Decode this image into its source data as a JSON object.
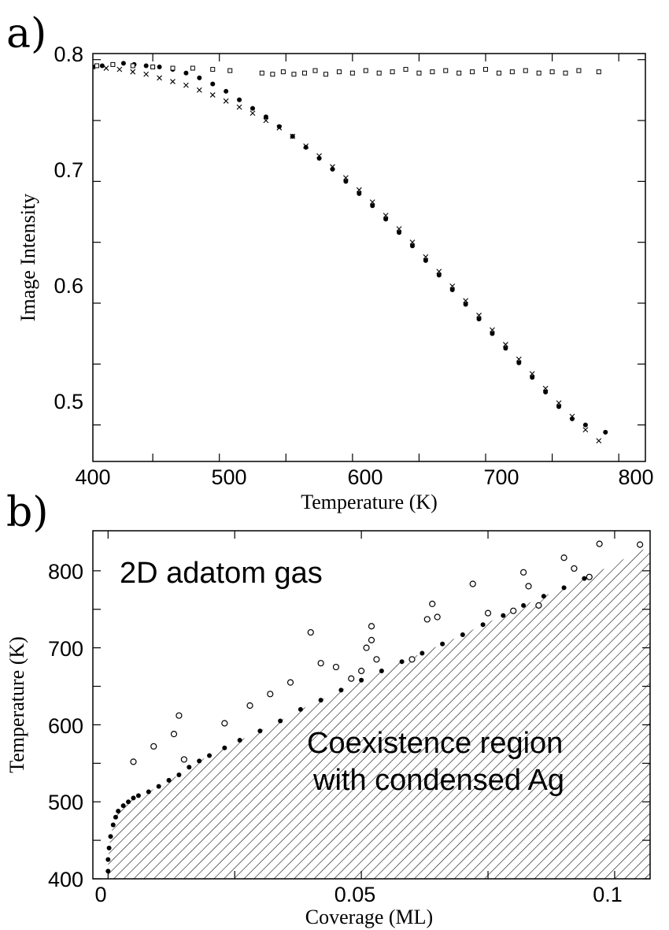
{
  "chart_data": [
    {
      "panel": "a)",
      "type": "scatter",
      "xlabel": "Temperature (K)",
      "ylabel": "Image Intensity",
      "xlim": [
        405,
        820
      ],
      "ylim": [
        0.47,
        0.805
      ],
      "xticks": [
        "400",
        "500",
        "600",
        "700",
        "800"
      ],
      "yticks": [
        "0.5",
        "0.6",
        "0.7",
        "0.8"
      ],
      "grid": false,
      "series": [
        {
          "marker": "filled-circle",
          "x": [
            405,
            412,
            420,
            428,
            436,
            445,
            455,
            465,
            475,
            485,
            495,
            505,
            515,
            525,
            535,
            545,
            555,
            565,
            575,
            585,
            595,
            605,
            615,
            625,
            635,
            645,
            655,
            665,
            675,
            685,
            695,
            705,
            715,
            725,
            735,
            745,
            755,
            765,
            775,
            790
          ],
          "y": [
            0.794,
            0.795,
            0.796,
            0.797,
            0.796,
            0.795,
            0.794,
            0.792,
            0.789,
            0.785,
            0.78,
            0.774,
            0.767,
            0.76,
            0.753,
            0.745,
            0.737,
            0.728,
            0.719,
            0.71,
            0.7,
            0.69,
            0.68,
            0.669,
            0.658,
            0.647,
            0.635,
            0.623,
            0.611,
            0.599,
            0.587,
            0.575,
            0.563,
            0.551,
            0.539,
            0.527,
            0.515,
            0.505,
            0.5,
            0.494
          ]
        },
        {
          "marker": "cross",
          "x": [
            405,
            415,
            425,
            435,
            445,
            455,
            465,
            475,
            485,
            495,
            505,
            515,
            525,
            535,
            545,
            555,
            565,
            575,
            585,
            595,
            605,
            615,
            625,
            635,
            645,
            655,
            665,
            675,
            685,
            695,
            705,
            715,
            725,
            735,
            745,
            755,
            765,
            775,
            785
          ],
          "y": [
            0.794,
            0.793,
            0.792,
            0.79,
            0.788,
            0.785,
            0.782,
            0.779,
            0.775,
            0.771,
            0.766,
            0.761,
            0.756,
            0.75,
            0.744,
            0.737,
            0.729,
            0.721,
            0.712,
            0.703,
            0.693,
            0.683,
            0.672,
            0.661,
            0.65,
            0.638,
            0.626,
            0.614,
            0.602,
            0.59,
            0.578,
            0.566,
            0.554,
            0.542,
            0.53,
            0.518,
            0.507,
            0.496,
            0.487
          ]
        },
        {
          "marker": "open-square",
          "x": [
            408,
            420,
            435,
            450,
            465,
            480,
            495,
            508,
            532,
            540,
            548,
            556,
            564,
            572,
            580,
            590,
            600,
            610,
            620,
            630,
            640,
            650,
            660,
            670,
            680,
            690,
            700,
            710,
            720,
            730,
            740,
            750,
            760,
            770,
            785
          ],
          "y": [
            0.795,
            0.796,
            0.795,
            0.794,
            0.793,
            0.793,
            0.792,
            0.791,
            0.789,
            0.788,
            0.79,
            0.788,
            0.789,
            0.791,
            0.788,
            0.79,
            0.789,
            0.791,
            0.789,
            0.79,
            0.792,
            0.789,
            0.79,
            0.791,
            0.789,
            0.79,
            0.792,
            0.789,
            0.79,
            0.791,
            0.789,
            0.79,
            0.789,
            0.791,
            0.79
          ]
        }
      ]
    },
    {
      "panel": "b)",
      "type": "scatter",
      "xlabel": "Coverage (ML)",
      "ylabel": "Temperature (K)",
      "xlim": [
        -0.003,
        0.107
      ],
      "ylim": [
        400,
        852
      ],
      "xticks": [
        "0",
        "0.05",
        "0.1"
      ],
      "yticks": [
        "400",
        "500",
        "600",
        "700",
        "800"
      ],
      "grid": false,
      "annotations": [
        "2D adatom gas",
        "Coexistence region",
        "with condensed Ag"
      ],
      "shaded_region": "hatched",
      "series": [
        {
          "marker": "filled-circle",
          "x": [
            0.0,
            0.0,
            0.0002,
            0.0005,
            0.001,
            0.0015,
            0.002,
            0.003,
            0.004,
            0.005,
            0.006,
            0.008,
            0.01,
            0.012,
            0.014,
            0.016,
            0.018,
            0.02,
            0.023,
            0.026,
            0.03,
            0.034,
            0.038,
            0.042,
            0.046,
            0.05,
            0.054,
            0.058,
            0.062,
            0.066,
            0.07,
            0.074,
            0.078,
            0.082,
            0.086,
            0.09,
            0.094
          ],
          "y": [
            410,
            425,
            440,
            455,
            470,
            480,
            488,
            495,
            500,
            505,
            508,
            513,
            520,
            528,
            535,
            545,
            553,
            560,
            570,
            580,
            592,
            605,
            620,
            632,
            645,
            658,
            670,
            682,
            693,
            705,
            717,
            730,
            742,
            755,
            767,
            778,
            790
          ]
        },
        {
          "marker": "open-circle",
          "x": [
            0.005,
            0.009,
            0.013,
            0.014,
            0.015,
            0.023,
            0.028,
            0.032,
            0.036,
            0.04,
            0.042,
            0.045,
            0.048,
            0.05,
            0.051,
            0.052,
            0.052,
            0.053,
            0.06,
            0.063,
            0.064,
            0.065,
            0.072,
            0.075,
            0.08,
            0.082,
            0.083,
            0.085,
            0.09,
            0.092,
            0.095,
            0.097,
            0.105
          ],
          "y": [
            552,
            572,
            588,
            612,
            555,
            602,
            625,
            640,
            655,
            720,
            680,
            675,
            660,
            670,
            700,
            710,
            728,
            685,
            685,
            737,
            757,
            740,
            783,
            745,
            748,
            798,
            780,
            755,
            817,
            803,
            792,
            835,
            834
          ]
        }
      ]
    }
  ]
}
